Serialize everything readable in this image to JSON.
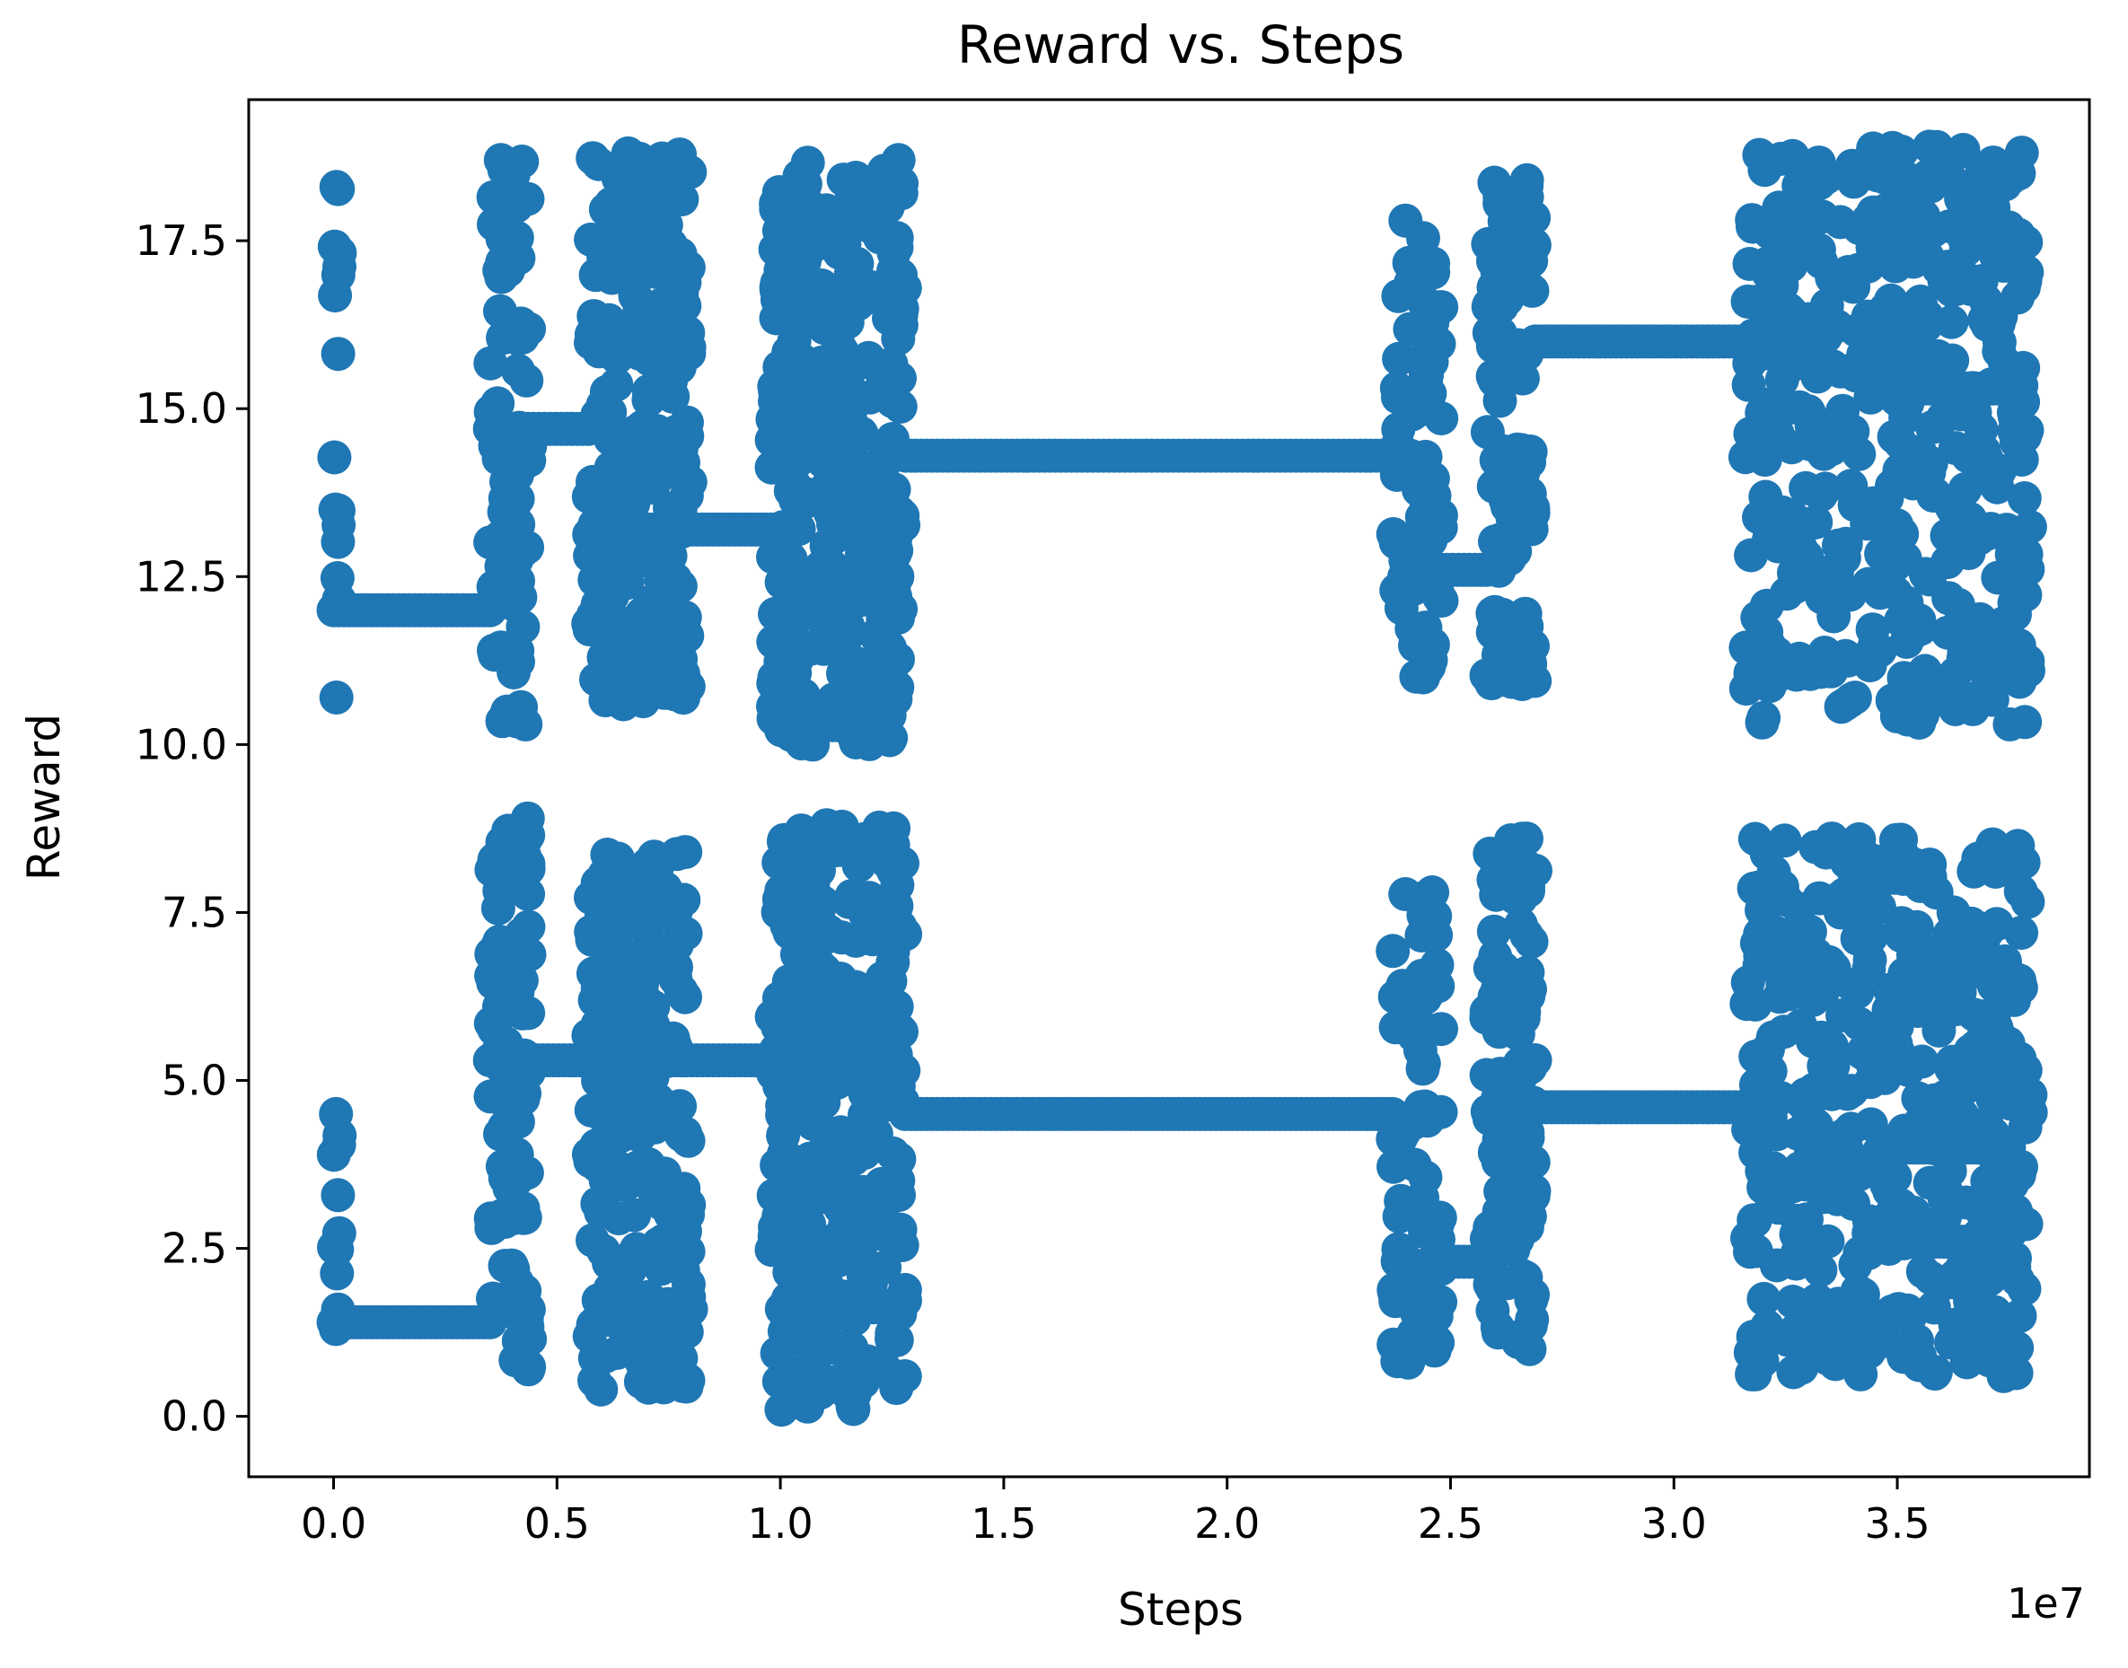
{
  "chart_data": {
    "type": "scatter",
    "title": "Reward vs. Steps",
    "xlabel": "Steps",
    "ylabel": "Reward",
    "x_offset_label": "1e7",
    "x_ticks": [
      "0.0",
      "0.5",
      "1.0",
      "1.5",
      "2.0",
      "2.5",
      "3.0",
      "3.5"
    ],
    "y_ticks": [
      "0.0",
      "2.5",
      "5.0",
      "7.5",
      "10.0",
      "12.5",
      "15.0",
      "17.5"
    ],
    "xlim": [
      -1900000,
      39300000
    ],
    "ylim": [
      -0.9,
      19.6
    ],
    "grid": false,
    "legend": false,
    "marker_color": "#1f77b4",
    "series": [
      {
        "clusters": [
          {
            "x": [
              0,
              150000
            ],
            "y": [
              10.7,
              18.3
            ],
            "n": 14
          },
          {
            "x": [
              3500000,
              4400000
            ],
            "y": [
              10.3,
              18.7
            ],
            "n": 90
          },
          {
            "x": [
              5700000,
              8000000
            ],
            "y": [
              10.6,
              18.8
            ],
            "n": 220
          },
          {
            "x": [
              9800000,
              12800000
            ],
            "y": [
              10.0,
              18.7
            ],
            "n": 330
          },
          {
            "x": [
              23700000,
              24800000
            ],
            "y": [
              11.0,
              17.8
            ],
            "n": 70
          },
          {
            "x": [
              25800000,
              26900000
            ],
            "y": [
              10.9,
              18.4
            ],
            "n": 110
          },
          {
            "x": [
              31600000,
              38000000
            ],
            "y": [
              10.3,
              18.9
            ],
            "n": 420
          }
        ],
        "segments": [
          {
            "x": [
              0,
              3500000
            ],
            "y": 12.0
          },
          {
            "x": [
              3500000,
              5700000
            ],
            "y": 14.7
          },
          {
            "x": [
              5700000,
              6600000
            ],
            "y": 11.8
          },
          {
            "x": [
              6600000,
              9800000
            ],
            "y": 13.2
          },
          {
            "x": [
              12800000,
              23700000
            ],
            "y": 14.3
          },
          {
            "x": [
              24800000,
              25800000
            ],
            "y": 12.6
          },
          {
            "x": [
              26900000,
              31600000
            ],
            "y": 16.0
          },
          {
            "x": [
              35000000,
              37500000
            ],
            "y": 15.3
          }
        ]
      },
      {
        "clusters": [
          {
            "x": [
              0,
              150000
            ],
            "y": [
              1.3,
              4.5
            ],
            "n": 10
          },
          {
            "x": [
              3500000,
              4400000
            ],
            "y": [
              0.7,
              8.9
            ],
            "n": 90
          },
          {
            "x": [
              5700000,
              8000000
            ],
            "y": [
              0.4,
              8.4
            ],
            "n": 220
          },
          {
            "x": [
              9800000,
              12800000
            ],
            "y": [
              0.1,
              8.8
            ],
            "n": 330
          },
          {
            "x": [
              23700000,
              24800000
            ],
            "y": [
              0.8,
              7.8
            ],
            "n": 70
          },
          {
            "x": [
              25800000,
              26900000
            ],
            "y": [
              1.0,
              8.6
            ],
            "n": 110
          },
          {
            "x": [
              31600000,
              38000000
            ],
            "y": [
              0.6,
              8.6
            ],
            "n": 420
          }
        ],
        "segments": [
          {
            "x": [
              0,
              3500000
            ],
            "y": 1.4
          },
          {
            "x": [
              3500000,
              9800000
            ],
            "y": 5.3
          },
          {
            "x": [
              12800000,
              23700000
            ],
            "y": 4.5
          },
          {
            "x": [
              24800000,
              25800000
            ],
            "y": 2.3
          },
          {
            "x": [
              26900000,
              31600000
            ],
            "y": 4.6
          },
          {
            "x": [
              35000000,
              37500000
            ],
            "y": 4.0
          },
          {
            "x": [
              35000000,
              37000000
            ],
            "y": 2.6
          }
        ]
      }
    ]
  }
}
